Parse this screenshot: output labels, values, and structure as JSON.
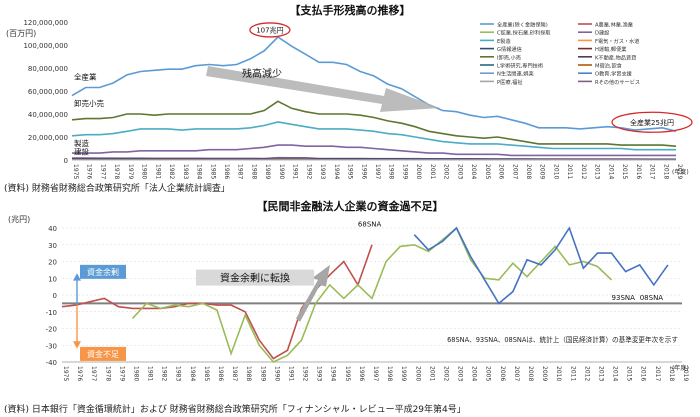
{
  "chart_data": [
    {
      "type": "line",
      "title": "【支払手形残高の推移】",
      "ylabel": "(百万円)",
      "yunit_note": "(年度)",
      "ylim": [
        0,
        120000000
      ],
      "yticks": [
        "0",
        "20,000,000",
        "40,000,000",
        "60,000,000",
        "80,000,000",
        "100,000,000",
        "120,000,000"
      ],
      "x_start": 1975,
      "x_end": 2019,
      "grid": false,
      "legend_position": "top-right",
      "legend": [
        {
          "label": "全産業(除く金融保険)",
          "color": "#5b9bd5"
        },
        {
          "label": "A農業,林業,漁業",
          "color": "#c0504d"
        },
        {
          "label": "C鉱業,採石業,砂利採取",
          "color": "#9bbb59"
        },
        {
          "label": "D建設",
          "color": "#8064a2"
        },
        {
          "label": "E製造",
          "color": "#4bacc6"
        },
        {
          "label": "F電気・ガス・水道",
          "color": "#f79646"
        },
        {
          "label": "G情報通信",
          "color": "#2c4d75"
        },
        {
          "label": "H運輸,郵便業",
          "color": "#772c2a"
        },
        {
          "label": "I卸売,小売",
          "color": "#5f7530"
        },
        {
          "label": "K不動産,物品賃貸",
          "color": "#4d3b62"
        },
        {
          "label": "L学術研究,専門技術",
          "color": "#276a7c"
        },
        {
          "label": "M宿泊,飲食",
          "color": "#b65708"
        },
        {
          "label": "N生活関連,娯楽",
          "color": "#729aca"
        },
        {
          "label": "O教育,学習支援",
          "color": "#4f81bd"
        },
        {
          "label": "P医療,福祉",
          "color": "#a5a5a5"
        },
        {
          "label": "Rその他のサービス",
          "color": "#7f6084"
        }
      ],
      "series": [
        {
          "name": "全産業(除く金融保険)",
          "color": "#5b9bd5",
          "values": [
            56,
            63,
            63,
            67,
            74,
            77,
            78,
            79,
            79,
            82,
            83,
            82,
            83,
            88,
            95,
            107,
            99,
            92,
            85,
            85,
            83,
            77,
            73,
            66,
            62,
            55,
            48,
            43,
            42,
            39,
            37,
            38,
            35,
            32,
            28,
            28,
            28,
            27,
            28,
            29,
            28,
            26,
            27,
            28,
            25
          ]
        },
        {
          "name": "I卸売,小売",
          "color": "#5f7530",
          "values": [
            35,
            36,
            36,
            37,
            40,
            40,
            39,
            40,
            40,
            40,
            40,
            40,
            40,
            40,
            43,
            51,
            45,
            42,
            40,
            40,
            40,
            39,
            37,
            34,
            32,
            29,
            25,
            23,
            21,
            20,
            19,
            20,
            18,
            16,
            14,
            14,
            14,
            14,
            14,
            14,
            13,
            13,
            13,
            13,
            12
          ]
        },
        {
          "name": "E製造",
          "color": "#4bacc6",
          "values": [
            21,
            22,
            22,
            23,
            25,
            27,
            27,
            27,
            26,
            27,
            27,
            27,
            27,
            28,
            30,
            33,
            31,
            29,
            27,
            27,
            27,
            26,
            25,
            23,
            22,
            20,
            18,
            16,
            15,
            14,
            14,
            14,
            13,
            12,
            11,
            10,
            10,
            10,
            10,
            10,
            10,
            9,
            9,
            9,
            9
          ]
        },
        {
          "name": "D建設",
          "color": "#8064a2",
          "values": [
            6,
            6,
            6,
            7,
            7,
            8,
            8,
            8,
            8,
            8,
            9,
            9,
            9,
            10,
            11,
            13,
            13,
            12,
            12,
            12,
            11,
            11,
            10,
            9,
            8,
            7,
            6,
            6,
            5,
            5,
            5,
            5,
            4,
            4,
            4,
            4,
            4,
            4,
            4,
            4,
            4,
            4,
            4,
            4,
            4
          ]
        }
      ],
      "annotations": {
        "peak": "107兆円",
        "latest": "全産業25兆円",
        "arrow_label": "残高減少",
        "label_all": "全産業",
        "label_wholesale": "卸売小売",
        "label_mfg": "製造",
        "label_construction": "建設"
      },
      "source": "(資料) 財務省財務総合政策研究所「法人企業統計調査」"
    },
    {
      "type": "line",
      "title": "【民間非金融法人企業の資金過不足】",
      "ylabel": "(兆円)",
      "xunit_note": "(年度)",
      "ylim": [
        -40,
        40
      ],
      "yticks": [
        -40,
        -30,
        -20,
        -10,
        0,
        10,
        20,
        30,
        40
      ],
      "x_start": 1975,
      "x_end": 2019,
      "grid": true,
      "series": [
        {
          "name": "68SNA",
          "color": "#c0504d",
          "start_year": 1975,
          "values": [
            -7,
            -6,
            -4,
            -2,
            -7,
            -8,
            -8,
            -8,
            -7,
            -5,
            -5,
            -6,
            -6,
            -10,
            -27,
            -38,
            -33,
            -8,
            3,
            12,
            20,
            6,
            30
          ]
        },
        {
          "name": "93SNA",
          "color": "#9bbb59",
          "start_year": 1980,
          "values": [
            -14,
            -5,
            -8,
            -6,
            -7,
            -5,
            -9,
            -35,
            -12,
            -30,
            -40,
            -36,
            -27,
            -5,
            6,
            -2,
            6,
            -2,
            20,
            29,
            30,
            26,
            33,
            40,
            21,
            10,
            9,
            19,
            11,
            20,
            29,
            18,
            20,
            17,
            9
          ]
        },
        {
          "name": "08SNA",
          "color": "#4472c4",
          "start_year": 2000,
          "values": [
            36,
            27,
            32,
            40,
            23,
            9,
            -5,
            2,
            21,
            18,
            27,
            40,
            16,
            25,
            25,
            14,
            18,
            6,
            18
          ]
        }
      ],
      "annotations": {
        "surplus_label": "資金余剰",
        "deficit_label": "資金不足",
        "arrow_label": "資金余剰に転換",
        "label_68": "68SNA",
        "label_93": "93SNA",
        "label_08": "08SNA",
        "note": "68SNA、93SNA、08SNAは、統計上（国民経済計算）の基準変更年次を示す"
      },
      "source": "(資料) 日本銀行「資金循環統計」および 財務省財務総合政策研究所「フィナンシャル・レビュー平成29年第4号」"
    }
  ]
}
